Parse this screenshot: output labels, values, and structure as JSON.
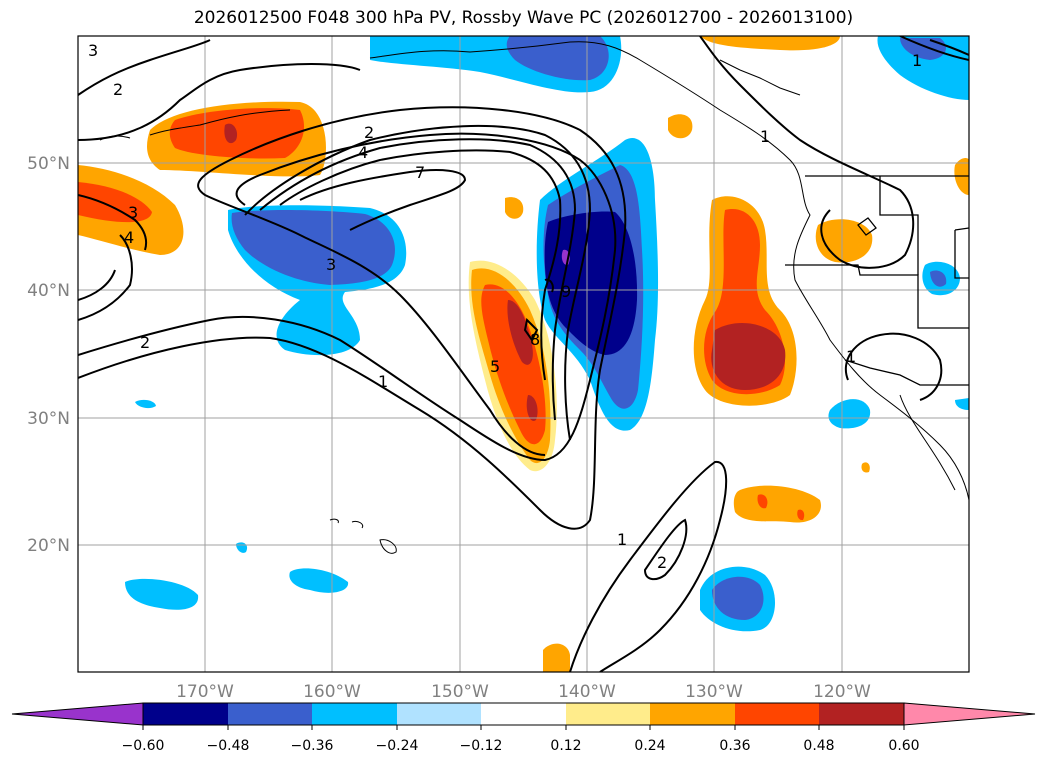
{
  "title": "2026012500 F048 300 hPa PV, Rossby Wave PC (2026012700 - 2026013100)",
  "map": {
    "lon_labels": [
      "170°W",
      "160°W",
      "150°W",
      "140°W",
      "130°W",
      "120°W"
    ],
    "lat_labels": [
      "50°N",
      "40°N",
      "30°N",
      "20°N"
    ],
    "lon_values": [
      -170,
      -160,
      -150,
      -140,
      -130,
      -120
    ],
    "lat_values": [
      50,
      40,
      30,
      20
    ],
    "gridlines": true
  },
  "contour_labels": [
    "3",
    "2",
    "2",
    "4",
    "7",
    "3",
    "3",
    "4",
    "2",
    "1",
    "5",
    "8",
    "9",
    "1",
    "1",
    "1",
    "2",
    "1"
  ],
  "colorbar": {
    "ticks": [
      "−0.60",
      "−0.48",
      "−0.36",
      "−0.24",
      "−0.12",
      "0.12",
      "0.24",
      "0.36",
      "0.48",
      "0.60"
    ],
    "colors": [
      "#9933cc",
      "#00008b",
      "#3a5fcd",
      "#00bfff",
      "#b0e2ff",
      "#ffffff",
      "#ffec8b",
      "#ffa500",
      "#ff4500",
      "#b22222",
      "#ff88aa"
    ]
  }
}
